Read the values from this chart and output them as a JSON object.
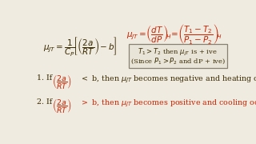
{
  "bg_color": "#f0ebe0",
  "text_color_black": "#3a2a00",
  "text_color_red": "#cc2200",
  "box_facecolor": "#e8e4d8",
  "box_edgecolor": "#888070"
}
